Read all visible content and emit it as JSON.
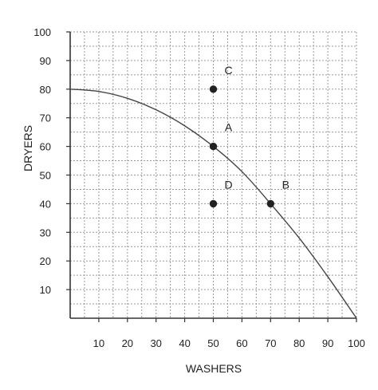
{
  "chart_data": {
    "type": "line",
    "xlabel": "WASHERS",
    "ylabel": "DRYERS",
    "xlim": [
      0,
      100
    ],
    "ylim": [
      0,
      100
    ],
    "xticks": [
      10,
      20,
      30,
      40,
      50,
      60,
      70,
      80,
      90,
      100
    ],
    "yticks": [
      10,
      20,
      30,
      40,
      50,
      60,
      70,
      80,
      90,
      100
    ],
    "grid": true,
    "curve": {
      "x": [
        0,
        10,
        20,
        30,
        40,
        50,
        60,
        70,
        80,
        90,
        100
      ],
      "y": [
        80,
        79.2,
        76.8,
        72.8,
        67.2,
        60,
        51.2,
        40,
        28,
        14.5,
        0
      ]
    },
    "points": [
      {
        "label": "C",
        "x": 50,
        "y": 80
      },
      {
        "label": "A",
        "x": 50,
        "y": 60
      },
      {
        "label": "D",
        "x": 50,
        "y": 40
      },
      {
        "label": "B",
        "x": 70,
        "y": 40
      }
    ],
    "colors": {
      "curve": "#444444",
      "grid": "#9a9a9a",
      "axis": "#333333",
      "point": "#222222"
    }
  }
}
